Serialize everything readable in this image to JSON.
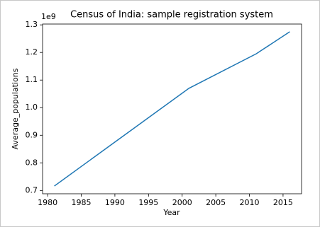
{
  "chart_data": {
    "type": "line",
    "title": "Census of India: sample registration system",
    "x_label": "Year",
    "y_label": "Average_populations",
    "y_offset_label": "1e9",
    "x": [
      1981,
      1991,
      2001,
      2011,
      2016
    ],
    "series": [
      {
        "name": "Average_populations",
        "color": "#1f77b4",
        "values": [
          0.716,
          0.893,
          1.07,
          1.195,
          1.275
        ]
      }
    ],
    "xlim": [
      1979.25,
      2017.75
    ],
    "xticks": [
      1980,
      1985,
      1990,
      1995,
      2000,
      2005,
      2010,
      2015
    ],
    "ylim": [
      0.688,
      1.303
    ],
    "yticks": [
      0.7,
      0.8,
      0.9,
      {
        "value": 1,
        "label": "1.0"
      },
      1.1,
      1.2,
      1.3
    ],
    "grid": false
  }
}
